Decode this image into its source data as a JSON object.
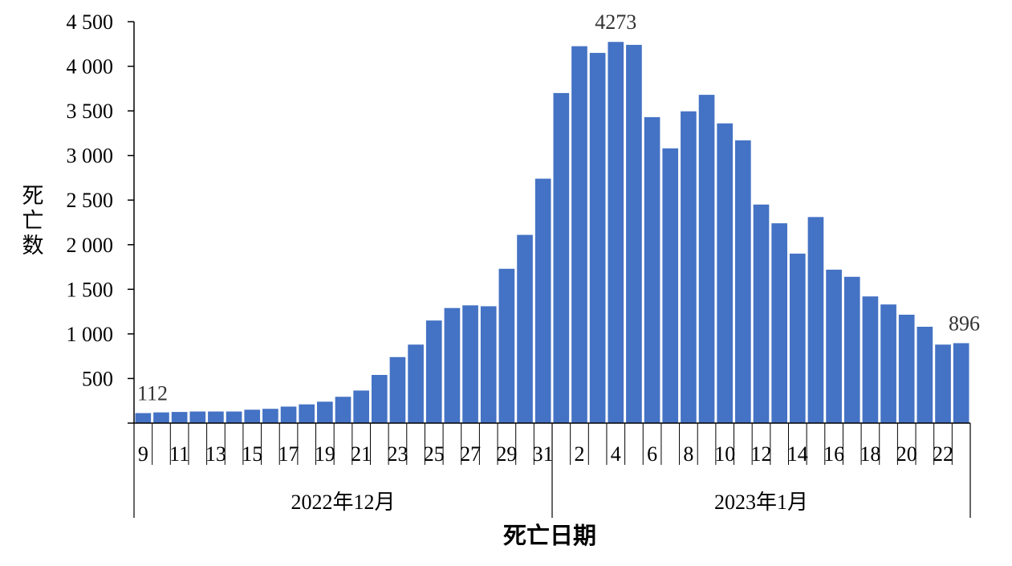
{
  "chart_data": {
    "type": "bar",
    "title": "",
    "xlabel": "死亡日期",
    "ylabel": "死亡数",
    "ylim": [
      0,
      4500
    ],
    "yticks": [
      {
        "value": 500,
        "label": "500"
      },
      {
        "value": 1000,
        "label": "1 000"
      },
      {
        "value": 1500,
        "label": "1 500"
      },
      {
        "value": 2000,
        "label": "2 000"
      },
      {
        "value": 2500,
        "label": "2 500"
      },
      {
        "value": 3000,
        "label": "3 000"
      },
      {
        "value": 3500,
        "label": "3 500"
      },
      {
        "value": 4000,
        "label": "4 000"
      },
      {
        "value": 4500,
        "label": "4 500"
      }
    ],
    "grid": false,
    "bar_color": "#4472C4",
    "categories": [
      "9",
      "10",
      "11",
      "12",
      "13",
      "14",
      "15",
      "16",
      "17",
      "18",
      "19",
      "20",
      "21",
      "22",
      "23",
      "24",
      "25",
      "26",
      "27",
      "28",
      "29",
      "30",
      "31",
      "1",
      "2",
      "3",
      "4",
      "5",
      "6",
      "7",
      "8",
      "9",
      "10",
      "11",
      "12",
      "13",
      "14",
      "15",
      "16",
      "17",
      "18",
      "19",
      "20",
      "21",
      "22",
      "23"
    ],
    "values": [
      112,
      120,
      125,
      130,
      130,
      130,
      150,
      160,
      185,
      210,
      240,
      295,
      365,
      540,
      740,
      880,
      1150,
      1290,
      1320,
      1310,
      1730,
      2110,
      2740,
      3700,
      4225,
      4150,
      4273,
      4240,
      3430,
      3080,
      3495,
      3680,
      3360,
      3170,
      2450,
      2240,
      1900,
      2310,
      1720,
      1640,
      1420,
      1330,
      1215,
      1080,
      880,
      896
    ],
    "visible_ticks": [
      {
        "index": 0,
        "label": "9"
      },
      {
        "index": 2,
        "label": "11"
      },
      {
        "index": 4,
        "label": "13"
      },
      {
        "index": 6,
        "label": "15"
      },
      {
        "index": 8,
        "label": "17"
      },
      {
        "index": 10,
        "label": "19"
      },
      {
        "index": 12,
        "label": "21"
      },
      {
        "index": 14,
        "label": "23"
      },
      {
        "index": 16,
        "label": "25"
      },
      {
        "index": 18,
        "label": "27"
      },
      {
        "index": 20,
        "label": "29"
      },
      {
        "index": 22,
        "label": "31"
      },
      {
        "index": 24,
        "label": "2"
      },
      {
        "index": 26,
        "label": "4"
      },
      {
        "index": 28,
        "label": "6"
      },
      {
        "index": 30,
        "label": "8"
      },
      {
        "index": 32,
        "label": "10"
      },
      {
        "index": 34,
        "label": "12"
      },
      {
        "index": 36,
        "label": "14"
      },
      {
        "index": 38,
        "label": "16"
      },
      {
        "index": 40,
        "label": "18"
      },
      {
        "index": 42,
        "label": "20"
      },
      {
        "index": 44,
        "label": "22"
      }
    ],
    "groups": [
      {
        "label": "2022年12月",
        "start_index": 0,
        "end_index": 22
      },
      {
        "label": "2023年1月",
        "start_index": 23,
        "end_index": 45
      }
    ],
    "annotations": [
      {
        "index": 0,
        "text": "112"
      },
      {
        "index": 26,
        "text": "4273"
      },
      {
        "index": 45,
        "text": "896"
      }
    ]
  }
}
